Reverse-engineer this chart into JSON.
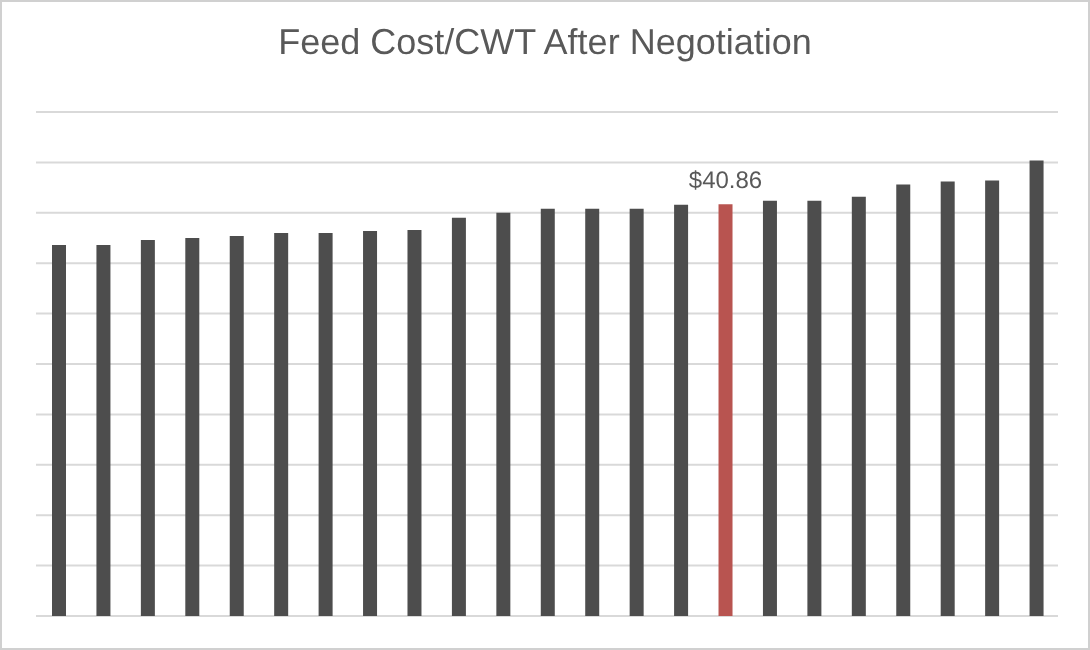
{
  "chart_data": {
    "type": "bar",
    "title": "Feed Cost/CWT After Negotiation",
    "categories": [
      null,
      null,
      null,
      null,
      null,
      null,
      null,
      null,
      null,
      null,
      null,
      null,
      null,
      null,
      null,
      null,
      null,
      null,
      null,
      null,
      null,
      null,
      null
    ],
    "values": [
      36.8,
      36.8,
      37.3,
      37.5,
      37.7,
      38.0,
      38.0,
      38.2,
      38.3,
      39.5,
      40.0,
      40.4,
      40.4,
      40.4,
      40.8,
      40.86,
      41.2,
      41.2,
      41.6,
      42.8,
      43.1,
      43.2,
      45.2
    ],
    "colors": [
      "#4d4d4d",
      "#4d4d4d",
      "#4d4d4d",
      "#4d4d4d",
      "#4d4d4d",
      "#4d4d4d",
      "#4d4d4d",
      "#4d4d4d",
      "#4d4d4d",
      "#4d4d4d",
      "#4d4d4d",
      "#4d4d4d",
      "#4d4d4d",
      "#4d4d4d",
      "#4d4d4d",
      "#b85450",
      "#4d4d4d",
      "#4d4d4d",
      "#4d4d4d",
      "#4d4d4d",
      "#4d4d4d",
      "#4d4d4d",
      "#4d4d4d"
    ],
    "value_labels": [
      null,
      null,
      null,
      null,
      null,
      null,
      null,
      null,
      null,
      null,
      null,
      null,
      null,
      null,
      null,
      "$40.86",
      null,
      null,
      null,
      null,
      null,
      null,
      null
    ],
    "ylim": [
      0,
      50
    ],
    "grid": "y"
  }
}
